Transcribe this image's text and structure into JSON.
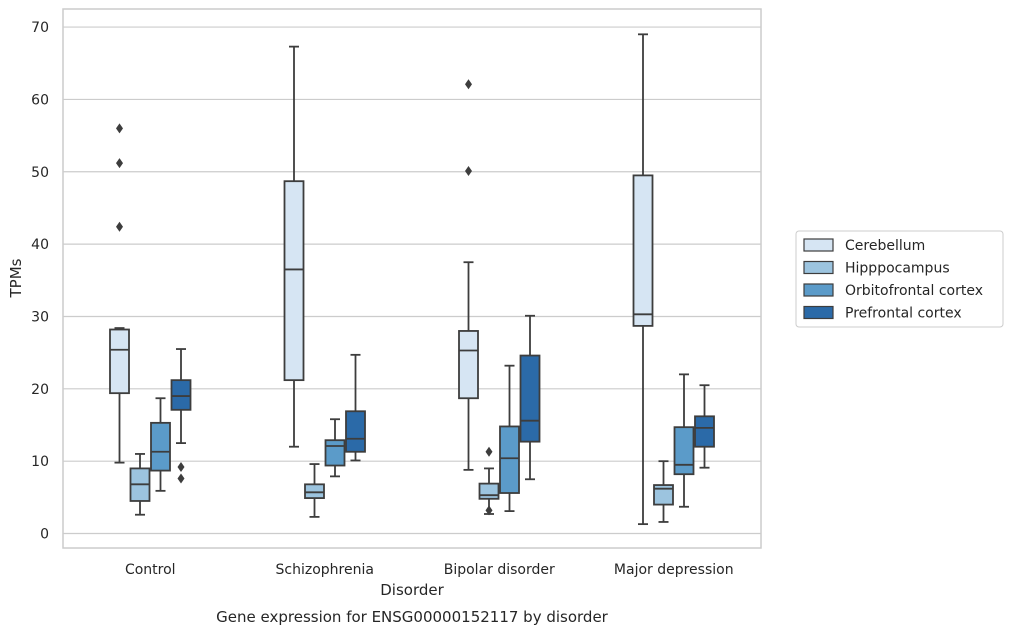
{
  "chart_data": {
    "type": "box",
    "caption": "Gene expression for ENSG00000152117 by disorder",
    "xlabel": "Disorder",
    "ylabel": "TPMs",
    "ylim": [
      -2,
      72.5
    ],
    "yticks": [
      0,
      10,
      20,
      30,
      40,
      50,
      60,
      70
    ],
    "grid": "horizontal",
    "legend_position": "right",
    "categories": [
      "Control",
      "Schizophrenia",
      "Bipolar disorder",
      "Major depression"
    ],
    "series": [
      {
        "name": "Cerebellum",
        "color": "#d6e5f3",
        "boxes": [
          {
            "whisker_low": 9.8,
            "q1": 19.4,
            "median": 25.4,
            "q3": 28.2,
            "whisker_high": 28.4,
            "outliers": [
              42.4,
              51.2,
              56.0
            ]
          },
          {
            "whisker_low": 12.0,
            "q1": 21.2,
            "median": 36.5,
            "q3": 48.7,
            "whisker_high": 67.3,
            "outliers": []
          },
          {
            "whisker_low": 8.8,
            "q1": 18.7,
            "median": 25.3,
            "q3": 28.0,
            "whisker_high": 37.5,
            "outliers": [
              50.1,
              62.1
            ]
          },
          {
            "whisker_low": 1.3,
            "q1": 28.7,
            "median": 30.3,
            "q3": 49.5,
            "whisker_high": 69.0,
            "outliers": []
          }
        ]
      },
      {
        "name": "Hipppocampus",
        "color": "#9cc4df",
        "boxes": [
          {
            "whisker_low": 2.6,
            "q1": 4.5,
            "median": 6.8,
            "q3": 9.0,
            "whisker_high": 11.0,
            "outliers": []
          },
          {
            "whisker_low": 2.3,
            "q1": 4.9,
            "median": 5.7,
            "q3": 6.8,
            "whisker_high": 9.6,
            "outliers": []
          },
          {
            "whisker_low": 2.7,
            "q1": 4.8,
            "median": 5.3,
            "q3": 6.9,
            "whisker_high": 9.0,
            "outliers": [
              3.2,
              11.3
            ]
          },
          {
            "whisker_low": 1.6,
            "q1": 4.0,
            "median": 6.2,
            "q3": 6.7,
            "whisker_high": 10.0,
            "outliers": []
          }
        ]
      },
      {
        "name": "Orbitofrontal cortex",
        "color": "#5b9bc9",
        "boxes": [
          {
            "whisker_low": 5.9,
            "q1": 8.7,
            "median": 11.3,
            "q3": 15.3,
            "whisker_high": 18.7,
            "outliers": []
          },
          {
            "whisker_low": 7.9,
            "q1": 9.4,
            "median": 12.1,
            "q3": 12.9,
            "whisker_high": 15.8,
            "outliers": []
          },
          {
            "whisker_low": 3.1,
            "q1": 5.6,
            "median": 10.4,
            "q3": 14.8,
            "whisker_high": 23.2,
            "outliers": []
          },
          {
            "whisker_low": 3.7,
            "q1": 8.2,
            "median": 9.5,
            "q3": 14.7,
            "whisker_high": 22.0,
            "outliers": []
          }
        ]
      },
      {
        "name": "Prefrontal cortex",
        "color": "#2b6aa8",
        "boxes": [
          {
            "whisker_low": 12.5,
            "q1": 17.1,
            "median": 19.0,
            "q3": 21.2,
            "whisker_high": 25.5,
            "outliers": [
              7.6,
              9.2
            ]
          },
          {
            "whisker_low": 10.1,
            "q1": 11.3,
            "median": 13.1,
            "q3": 16.9,
            "whisker_high": 24.7,
            "outliers": []
          },
          {
            "whisker_low": 7.5,
            "q1": 12.7,
            "median": 15.6,
            "q3": 24.6,
            "whisker_high": 30.1,
            "outliers": []
          },
          {
            "whisker_low": 9.1,
            "q1": 12.0,
            "median": 14.6,
            "q3": 16.2,
            "whisker_high": 20.5,
            "outliers": []
          }
        ]
      }
    ]
  }
}
